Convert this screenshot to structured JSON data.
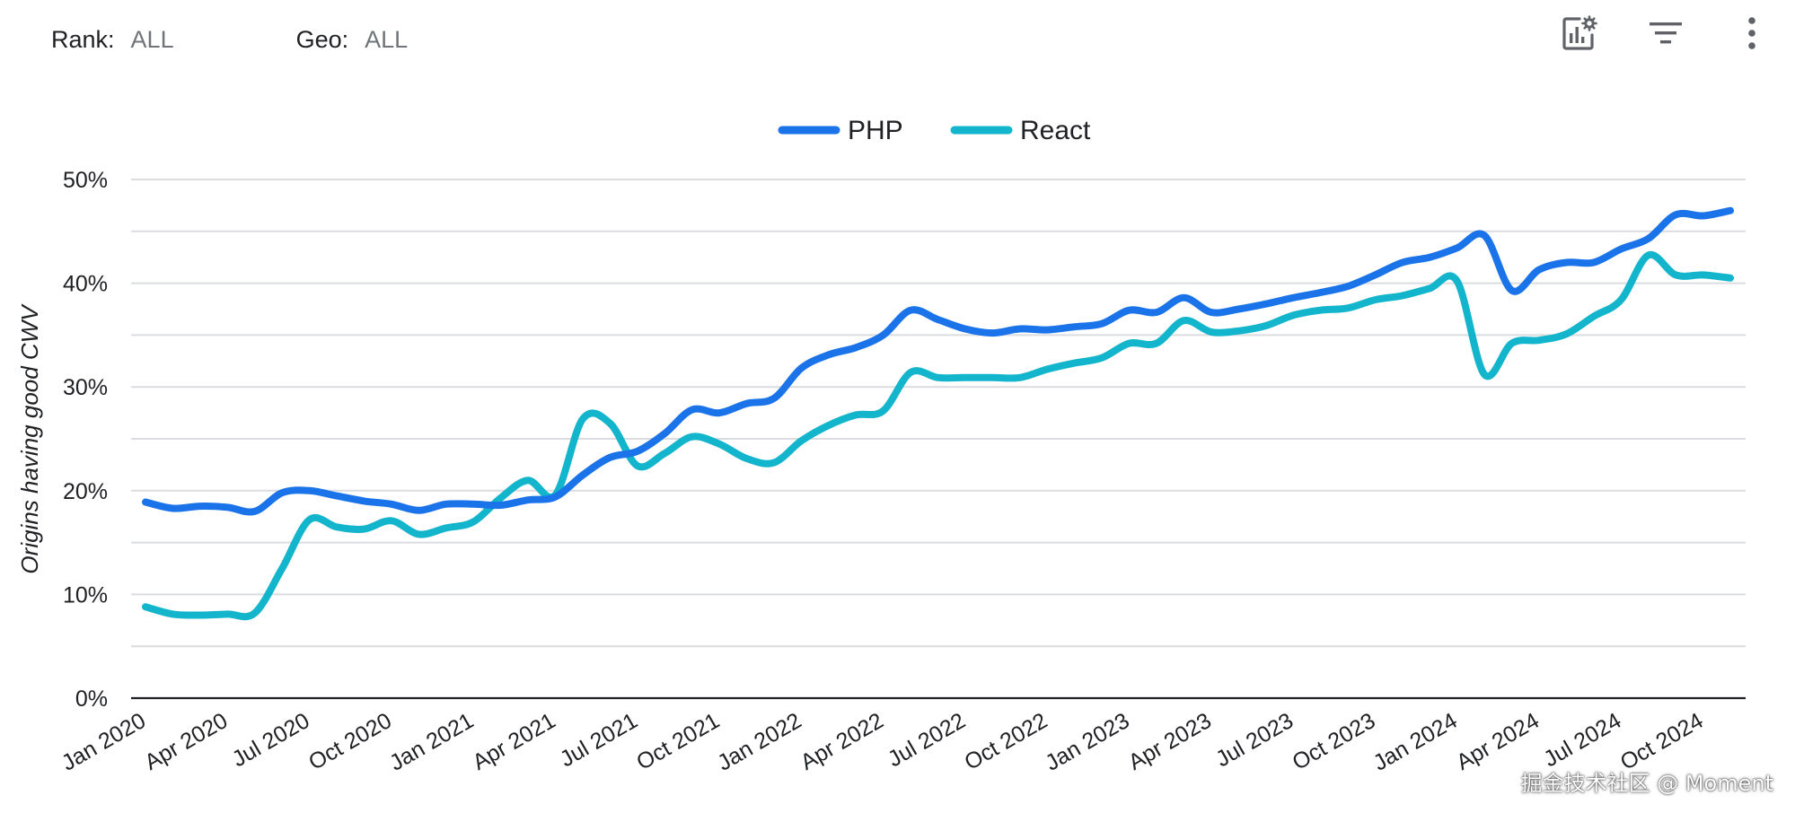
{
  "filters": {
    "rank_label": "Rank:",
    "rank_value": "ALL",
    "geo_label": "Geo:",
    "geo_value": "ALL"
  },
  "toolbar": {
    "icons": [
      "chart-settings-icon",
      "filter-icon",
      "more-vert-icon"
    ]
  },
  "watermark": "掘金技术社区 @ Moment",
  "colors": {
    "php": "#1a73e8",
    "react": "#12b5cb",
    "grid": "#dadce0",
    "axis": "#202124"
  },
  "chart_data": {
    "type": "line",
    "title": "",
    "xlabel": "",
    "ylabel": "Origins having good CWV",
    "ylim": [
      0,
      50
    ],
    "yticks": [
      "0%",
      "10%",
      "20%",
      "30%",
      "40%",
      "50%"
    ],
    "grid": true,
    "legend_position": "top-center",
    "x": [
      "2020-01",
      "2020-02",
      "2020-03",
      "2020-04",
      "2020-05",
      "2020-06",
      "2020-07",
      "2020-08",
      "2020-09",
      "2020-10",
      "2020-11",
      "2020-12",
      "2021-01",
      "2021-02",
      "2021-03",
      "2021-04",
      "2021-05",
      "2021-06",
      "2021-07",
      "2021-08",
      "2021-09",
      "2021-10",
      "2021-11",
      "2021-12",
      "2022-01",
      "2022-02",
      "2022-03",
      "2022-04",
      "2022-05",
      "2022-06",
      "2022-07",
      "2022-08",
      "2022-09",
      "2022-10",
      "2022-11",
      "2022-12",
      "2023-01",
      "2023-02",
      "2023-03",
      "2023-04",
      "2023-05",
      "2023-06",
      "2023-07",
      "2023-08",
      "2023-09",
      "2023-10",
      "2023-11",
      "2023-12",
      "2024-01",
      "2024-02",
      "2024-03",
      "2024-04",
      "2024-05",
      "2024-06",
      "2024-07",
      "2024-08",
      "2024-09",
      "2024-10",
      "2024-11"
    ],
    "xtick_labels": [
      "Jan 2020",
      "Apr 2020",
      "Jul 2020",
      "Oct 2020",
      "Jan 2021",
      "Apr 2021",
      "Jul 2021",
      "Oct 2021",
      "Jan 2022",
      "Apr 2022",
      "Jul 2022",
      "Oct 2022",
      "Jan 2023",
      "Apr 2023",
      "Jul 2023",
      "Oct 2023",
      "Jan 2024",
      "Apr 2024",
      "Jul 2024",
      "Oct 2024"
    ],
    "xtick_positions": [
      "2020-01",
      "2020-04",
      "2020-07",
      "2020-10",
      "2021-01",
      "2021-04",
      "2021-07",
      "2021-10",
      "2022-01",
      "2022-04",
      "2022-07",
      "2022-10",
      "2023-01",
      "2023-04",
      "2023-07",
      "2023-10",
      "2024-01",
      "2024-04",
      "2024-07",
      "2024-10"
    ],
    "series": [
      {
        "name": "PHP",
        "values": [
          18.9,
          18.3,
          18.5,
          18.4,
          18.0,
          19.8,
          20.0,
          19.5,
          19.0,
          18.7,
          18.1,
          18.7,
          18.7,
          18.6,
          19.1,
          19.4,
          21.5,
          23.2,
          23.8,
          25.5,
          27.8,
          27.5,
          28.4,
          28.9,
          31.8,
          33.1,
          33.8,
          35.0,
          37.4,
          36.5,
          35.6,
          35.2,
          35.6,
          35.5,
          35.8,
          36.1,
          37.4,
          37.2,
          38.6,
          37.2,
          37.5,
          38.0,
          38.6,
          39.1,
          39.7,
          40.8,
          42.0,
          42.5,
          43.4,
          44.6,
          39.3,
          41.3,
          42.0,
          42.0,
          43.3,
          44.3,
          46.6,
          46.5,
          47.0
        ]
      },
      {
        "name": "React",
        "values": [
          8.8,
          8.1,
          8.0,
          8.1,
          8.2,
          12.5,
          17.2,
          16.5,
          16.3,
          17.1,
          15.8,
          16.4,
          17.0,
          19.3,
          21.0,
          19.6,
          26.9,
          26.5,
          22.4,
          23.6,
          25.2,
          24.5,
          23.1,
          22.7,
          24.8,
          26.3,
          27.3,
          27.7,
          31.4,
          30.9,
          30.9,
          30.9,
          30.9,
          31.7,
          32.3,
          32.8,
          34.2,
          34.2,
          36.4,
          35.3,
          35.4,
          35.9,
          36.9,
          37.4,
          37.6,
          38.4,
          38.8,
          39.5,
          40.2,
          31.2,
          34.2,
          34.5,
          35.1,
          36.8,
          38.4,
          42.7,
          40.8,
          40.8,
          40.5
        ]
      }
    ]
  }
}
